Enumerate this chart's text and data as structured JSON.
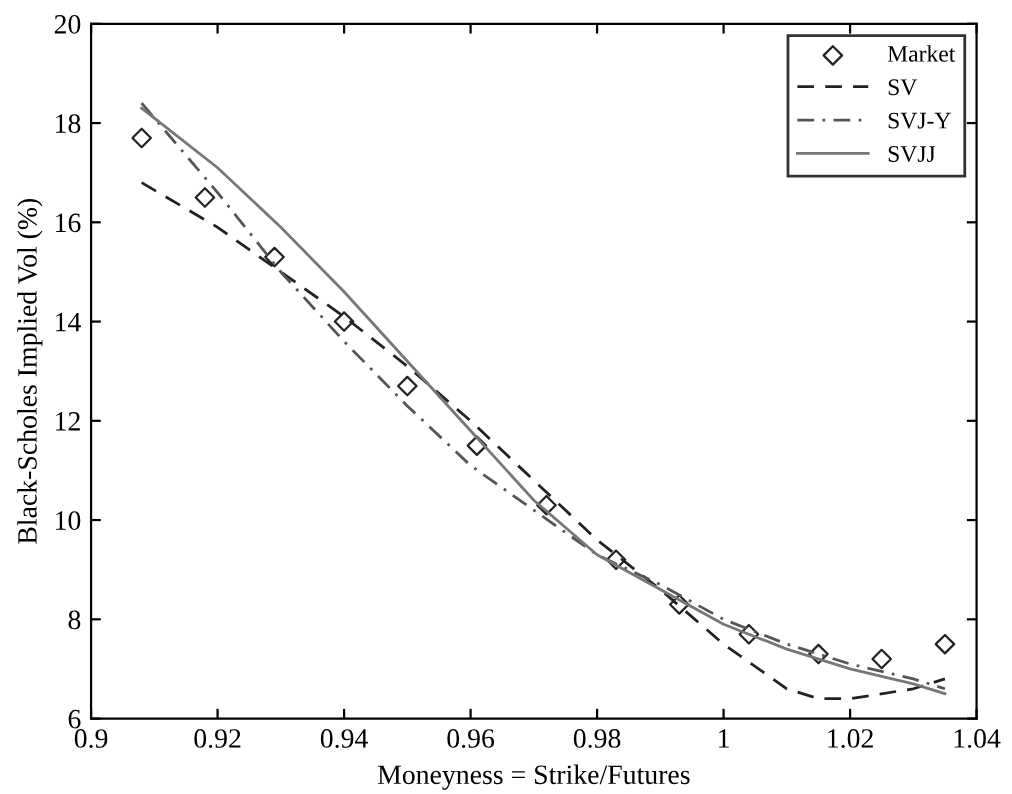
{
  "chart_data": {
    "type": "line",
    "xlabel": "Moneyness = Strike/Futures",
    "ylabel": "Black-Scholes Implied Vol (%)",
    "xlim": [
      0.9,
      1.04
    ],
    "ylim": [
      6,
      20
    ],
    "xticks": [
      0.9,
      0.92,
      0.94,
      0.96,
      0.98,
      1,
      1.02,
      1.04
    ],
    "yticks": [
      6,
      8,
      10,
      12,
      14,
      16,
      18,
      20
    ],
    "legend": "top right",
    "grid": false,
    "series": [
      {
        "name": "Market",
        "type": "scatter",
        "marker": "diamond",
        "color": "#222222",
        "x": [
          0.908,
          0.918,
          0.929,
          0.94,
          0.95,
          0.961,
          0.972,
          0.983,
          0.993,
          1.004,
          1.015,
          1.025,
          1.035
        ],
        "values": [
          17.7,
          16.5,
          15.3,
          14.0,
          12.7,
          11.5,
          10.3,
          9.2,
          8.3,
          7.7,
          7.3,
          7.2,
          7.5
        ]
      },
      {
        "name": "SV",
        "line_style": "dashed",
        "color": "#222222",
        "x": [
          0.908,
          0.92,
          0.93,
          0.94,
          0.95,
          0.96,
          0.97,
          0.98,
          0.99,
          1.0,
          1.01,
          1.015,
          1.02,
          1.03,
          1.035
        ],
        "values": [
          16.8,
          15.9,
          15.0,
          14.1,
          13.1,
          12.0,
          10.8,
          9.6,
          8.6,
          7.5,
          6.6,
          6.4,
          6.4,
          6.6,
          6.8
        ]
      },
      {
        "name": "SVJ-Y",
        "line_style": "dashdot",
        "color": "#555555",
        "x": [
          0.908,
          0.92,
          0.93,
          0.94,
          0.95,
          0.96,
          0.97,
          0.98,
          0.99,
          1.0,
          1.01,
          1.02,
          1.03,
          1.035
        ],
        "values": [
          18.4,
          16.6,
          15.0,
          13.6,
          12.3,
          11.1,
          10.2,
          9.3,
          8.7,
          8.0,
          7.5,
          7.1,
          6.8,
          6.6
        ]
      },
      {
        "name": "SVJJ",
        "line_style": "solid",
        "color": "#777777",
        "x": [
          0.908,
          0.92,
          0.93,
          0.94,
          0.95,
          0.96,
          0.97,
          0.98,
          0.99,
          1.0,
          1.01,
          1.02,
          1.03,
          1.035
        ],
        "values": [
          18.3,
          17.1,
          15.9,
          14.6,
          13.2,
          11.8,
          10.4,
          9.3,
          8.6,
          7.9,
          7.4,
          7.0,
          6.7,
          6.5
        ]
      }
    ]
  }
}
